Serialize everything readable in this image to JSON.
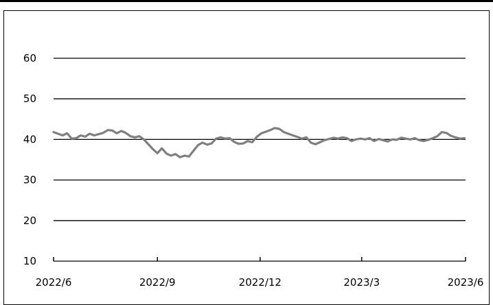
{
  "chart_data": {
    "type": "line",
    "title": "",
    "xlabel": "",
    "ylabel": "",
    "ylim": [
      10,
      60
    ],
    "yticks": [
      10,
      20,
      30,
      40,
      50,
      60
    ],
    "xlim": [
      "2022-06-01",
      "2023-06-01"
    ],
    "xticks": [
      {
        "date": "2022-06-01",
        "label": "2022/6"
      },
      {
        "date": "2022-09-01",
        "label": "2022/9"
      },
      {
        "date": "2022-12-01",
        "label": "2022/12"
      },
      {
        "date": "2023-03-01",
        "label": "2023/3"
      },
      {
        "date": "2023-06-01",
        "label": "2023/6"
      }
    ],
    "grid": true,
    "legend": "none",
    "series": [
      {
        "color": "#7f7f7f",
        "points": [
          [
            "2022-06-01",
            41.8
          ],
          [
            "2022-06-05",
            41.4
          ],
          [
            "2022-06-09",
            41.0
          ],
          [
            "2022-06-13",
            41.5
          ],
          [
            "2022-06-17",
            40.2
          ],
          [
            "2022-06-21",
            40.3
          ],
          [
            "2022-06-25",
            41.0
          ],
          [
            "2022-06-29",
            40.7
          ],
          [
            "2022-07-03",
            41.4
          ],
          [
            "2022-07-07",
            41.0
          ],
          [
            "2022-07-11",
            41.3
          ],
          [
            "2022-07-15",
            41.6
          ],
          [
            "2022-07-19",
            42.3
          ],
          [
            "2022-07-23",
            42.2
          ],
          [
            "2022-07-27",
            41.5
          ],
          [
            "2022-07-31",
            42.1
          ],
          [
            "2022-08-04",
            41.6
          ],
          [
            "2022-08-08",
            40.8
          ],
          [
            "2022-08-12",
            40.5
          ],
          [
            "2022-08-16",
            40.8
          ],
          [
            "2022-08-20",
            40.0
          ],
          [
            "2022-08-24",
            38.8
          ],
          [
            "2022-08-28",
            37.6
          ],
          [
            "2022-09-01",
            36.6
          ],
          [
            "2022-09-05",
            37.8
          ],
          [
            "2022-09-09",
            36.5
          ],
          [
            "2022-09-13",
            36.0
          ],
          [
            "2022-09-17",
            36.4
          ],
          [
            "2022-09-21",
            35.6
          ],
          [
            "2022-09-25",
            36.0
          ],
          [
            "2022-09-29",
            35.8
          ],
          [
            "2022-10-03",
            37.2
          ],
          [
            "2022-10-07",
            38.6
          ],
          [
            "2022-10-11",
            39.2
          ],
          [
            "2022-10-15",
            38.7
          ],
          [
            "2022-10-19",
            39.0
          ],
          [
            "2022-10-23",
            40.2
          ],
          [
            "2022-10-27",
            40.5
          ],
          [
            "2022-10-31",
            40.2
          ],
          [
            "2022-11-04",
            40.3
          ],
          [
            "2022-11-08",
            39.4
          ],
          [
            "2022-11-12",
            38.9
          ],
          [
            "2022-11-16",
            39.0
          ],
          [
            "2022-11-20",
            39.6
          ],
          [
            "2022-11-24",
            39.3
          ],
          [
            "2022-11-28",
            40.6
          ],
          [
            "2022-12-02",
            41.5
          ],
          [
            "2022-12-06",
            41.9
          ],
          [
            "2022-12-10",
            42.3
          ],
          [
            "2022-12-14",
            42.8
          ],
          [
            "2022-12-18",
            42.6
          ],
          [
            "2022-12-22",
            41.8
          ],
          [
            "2022-12-26",
            41.4
          ],
          [
            "2022-12-30",
            41.0
          ],
          [
            "2023-01-03",
            40.6
          ],
          [
            "2023-01-07",
            40.2
          ],
          [
            "2023-01-11",
            40.5
          ],
          [
            "2023-01-15",
            39.2
          ],
          [
            "2023-01-19",
            38.8
          ],
          [
            "2023-01-23",
            39.3
          ],
          [
            "2023-01-27",
            39.8
          ],
          [
            "2023-01-31",
            40.1
          ],
          [
            "2023-02-04",
            40.4
          ],
          [
            "2023-02-08",
            40.2
          ],
          [
            "2023-02-12",
            40.5
          ],
          [
            "2023-02-16",
            40.3
          ],
          [
            "2023-02-20",
            39.6
          ],
          [
            "2023-02-24",
            40.0
          ],
          [
            "2023-02-28",
            40.2
          ],
          [
            "2023-03-04",
            40.0
          ],
          [
            "2023-03-08",
            40.3
          ],
          [
            "2023-03-12",
            39.6
          ],
          [
            "2023-03-16",
            40.1
          ],
          [
            "2023-03-20",
            39.8
          ],
          [
            "2023-03-24",
            39.5
          ],
          [
            "2023-03-28",
            40.0
          ],
          [
            "2023-04-01",
            39.9
          ],
          [
            "2023-04-05",
            40.4
          ],
          [
            "2023-04-09",
            40.2
          ],
          [
            "2023-04-13",
            40.0
          ],
          [
            "2023-04-17",
            40.3
          ],
          [
            "2023-04-21",
            39.8
          ],
          [
            "2023-04-25",
            39.6
          ],
          [
            "2023-04-29",
            39.9
          ],
          [
            "2023-05-03",
            40.3
          ],
          [
            "2023-05-07",
            40.8
          ],
          [
            "2023-05-11",
            41.8
          ],
          [
            "2023-05-15",
            41.6
          ],
          [
            "2023-05-19",
            40.9
          ],
          [
            "2023-05-23",
            40.5
          ],
          [
            "2023-05-27",
            40.2
          ],
          [
            "2023-05-31",
            40.3
          ]
        ]
      }
    ]
  }
}
